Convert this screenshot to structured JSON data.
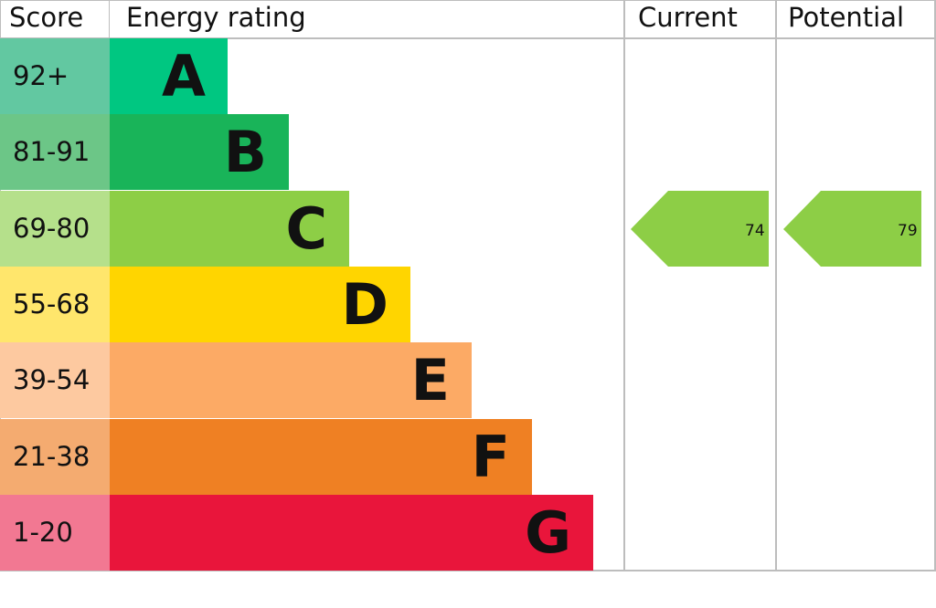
{
  "chart_data": {
    "type": "bar",
    "headers": {
      "score": "Score",
      "rating": "Energy rating",
      "current": "Current",
      "potential": "Potential"
    },
    "bands": [
      {
        "letter": "A",
        "range": "92+",
        "color": "#00c781",
        "score_color": "#62c8a1"
      },
      {
        "letter": "B",
        "range": "81-91",
        "color": "#19b459",
        "score_color": "#6cc687"
      },
      {
        "letter": "C",
        "range": "69-80",
        "color": "#8dce46",
        "score_color": "#b5e08b"
      },
      {
        "letter": "D",
        "range": "55-68",
        "color": "#ffd500",
        "score_color": "#ffe66c"
      },
      {
        "letter": "E",
        "range": "39-54",
        "color": "#fcaa65",
        "score_color": "#fdc9a0"
      },
      {
        "letter": "F",
        "range": "21-38",
        "color": "#ef8023",
        "score_color": "#f4ab70"
      },
      {
        "letter": "G",
        "range": "1-20",
        "color": "#e9153b",
        "score_color": "#f27892"
      }
    ],
    "current": {
      "value": "74",
      "band": "C",
      "color": "#8dce46"
    },
    "potential": {
      "value": "79",
      "band": "C",
      "color": "#8dce46"
    }
  }
}
